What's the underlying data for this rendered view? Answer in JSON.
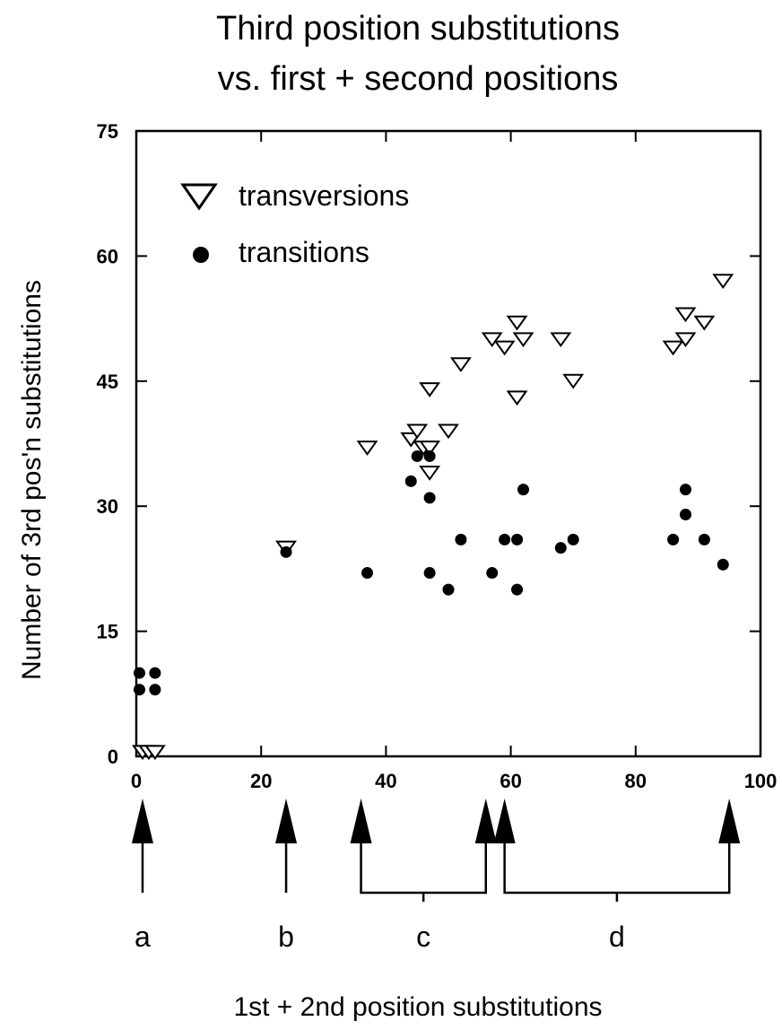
{
  "chart_data": {
    "type": "scatter",
    "title": "Third position substitutions",
    "subtitle": "vs. first + second positions",
    "xlabel": "1st + 2nd position substitutions",
    "ylabel": "Number of 3rd pos'n substitutions",
    "xlim": [
      0,
      100
    ],
    "ylim": [
      0,
      75
    ],
    "xticks": [
      0,
      20,
      40,
      60,
      80,
      100
    ],
    "yticks": [
      0,
      15,
      30,
      45,
      60,
      75
    ],
    "legend_position": "top-left",
    "series": [
      {
        "name": "transversions",
        "marker": "open-triangle-down",
        "color": "#000000",
        "points": [
          [
            1,
            0.5
          ],
          [
            2,
            0.5
          ],
          [
            3,
            0.5
          ],
          [
            24,
            25
          ],
          [
            37,
            37
          ],
          [
            44,
            38
          ],
          [
            45,
            39
          ],
          [
            46,
            37
          ],
          [
            47,
            37
          ],
          [
            47,
            34
          ],
          [
            47,
            44
          ],
          [
            50,
            39
          ],
          [
            52,
            47
          ],
          [
            57,
            50
          ],
          [
            59,
            49
          ],
          [
            61,
            52
          ],
          [
            61,
            43
          ],
          [
            62,
            50
          ],
          [
            68,
            50
          ],
          [
            70,
            45
          ],
          [
            86,
            49
          ],
          [
            88,
            50
          ],
          [
            88,
            53
          ],
          [
            91,
            52
          ],
          [
            94,
            57
          ]
        ]
      },
      {
        "name": "transitions",
        "marker": "filled-circle",
        "color": "#000000",
        "points": [
          [
            0.5,
            10
          ],
          [
            0.5,
            8
          ],
          [
            3,
            10
          ],
          [
            3,
            8
          ],
          [
            24,
            24.5
          ],
          [
            37,
            22
          ],
          [
            44,
            33
          ],
          [
            45,
            36
          ],
          [
            47,
            36
          ],
          [
            47,
            31
          ],
          [
            47,
            22
          ],
          [
            50,
            20
          ],
          [
            52,
            26
          ],
          [
            57,
            22
          ],
          [
            59,
            26
          ],
          [
            61,
            26
          ],
          [
            61,
            20
          ],
          [
            62,
            32
          ],
          [
            68,
            25
          ],
          [
            70,
            26
          ],
          [
            86,
            26
          ],
          [
            88,
            29
          ],
          [
            88,
            32
          ],
          [
            91,
            26
          ],
          [
            94,
            23
          ]
        ]
      }
    ],
    "groups": [
      {
        "label": "a",
        "x_from": 1,
        "x_to": 1
      },
      {
        "label": "b",
        "x_from": 24,
        "x_to": 24
      },
      {
        "label": "c",
        "x_from": 36,
        "x_to": 56
      },
      {
        "label": "d",
        "x_from": 59,
        "x_to": 95
      }
    ]
  }
}
